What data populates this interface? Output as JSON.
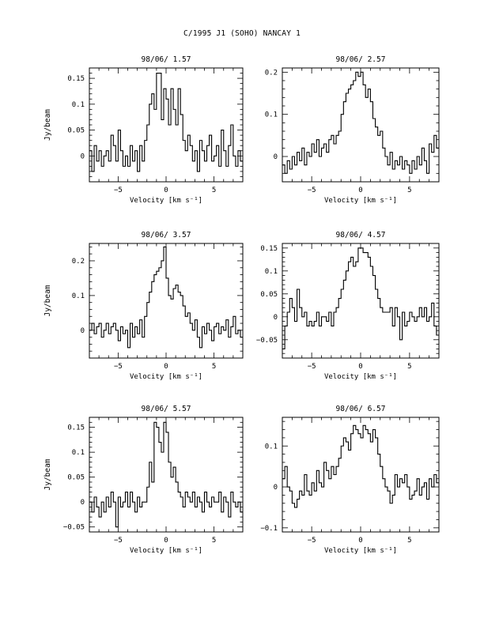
{
  "page_title": "C/1995 J1 (SOHO)   NANCAY      1",
  "chart_data": [
    {
      "type": "line",
      "title": "98/06/ 1.57",
      "xlabel": "Velocity [km s⁻¹]",
      "ylabel": "Jy/beam",
      "xlim": [
        -8,
        8
      ],
      "ylim": [
        -0.05,
        0.17
      ],
      "xticks": [
        -5,
        0,
        5
      ],
      "yticks": [
        0,
        0.05,
        0.1,
        0.15
      ],
      "ytick_labels": [
        "0",
        "0.05",
        "0.1",
        "0.15"
      ],
      "grid": false,
      "legend": "none",
      "x": [
        -8.0,
        -7.75,
        -7.5,
        -7.25,
        -7.0,
        -6.75,
        -6.5,
        -6.25,
        -6.0,
        -5.75,
        -5.5,
        -5.25,
        -5.0,
        -4.75,
        -4.5,
        -4.25,
        -4.0,
        -3.75,
        -3.5,
        -3.25,
        -3.0,
        -2.75,
        -2.5,
        -2.25,
        -2.0,
        -1.75,
        -1.5,
        -1.25,
        -1.0,
        -0.75,
        -0.5,
        -0.25,
        0.0,
        0.25,
        0.5,
        0.75,
        1.0,
        1.25,
        1.5,
        1.75,
        2.0,
        2.25,
        2.5,
        2.75,
        3.0,
        3.25,
        3.5,
        3.75,
        4.0,
        4.25,
        4.5,
        4.75,
        5.0,
        5.25,
        5.5,
        5.75,
        6.0,
        6.25,
        6.5,
        6.75,
        7.0,
        7.25,
        7.5,
        7.75
      ],
      "values": [
        0.01,
        -0.03,
        0.02,
        -0.01,
        0.01,
        -0.02,
        0.0,
        0.01,
        -0.01,
        0.04,
        0.02,
        -0.01,
        0.05,
        0.01,
        -0.02,
        0.0,
        -0.02,
        0.02,
        -0.01,
        0.01,
        -0.03,
        0.02,
        -0.01,
        0.03,
        0.06,
        0.1,
        0.12,
        0.09,
        0.16,
        0.16,
        0.07,
        0.13,
        0.11,
        0.06,
        0.13,
        0.09,
        0.06,
        0.13,
        0.08,
        0.03,
        0.01,
        0.04,
        0.02,
        -0.01,
        0.01,
        -0.03,
        0.03,
        0.01,
        -0.01,
        0.02,
        0.04,
        -0.01,
        0.0,
        0.02,
        -0.02,
        0.05,
        0.01,
        -0.02,
        0.02,
        0.06,
        0.0,
        -0.02,
        0.01,
        -0.01
      ]
    },
    {
      "type": "line",
      "title": "98/06/ 2.57",
      "xlabel": "Velocity [km s⁻¹]",
      "ylabel": "",
      "xlim": [
        -8,
        8
      ],
      "ylim": [
        -0.06,
        0.21
      ],
      "xticks": [
        -5,
        0,
        5
      ],
      "yticks": [
        0,
        0.1,
        0.2
      ],
      "ytick_labels": [
        "0",
        "0.1",
        "0.2"
      ],
      "grid": false,
      "legend": "none",
      "x": [
        -8.0,
        -7.75,
        -7.5,
        -7.25,
        -7.0,
        -6.75,
        -6.5,
        -6.25,
        -6.0,
        -5.75,
        -5.5,
        -5.25,
        -5.0,
        -4.75,
        -4.5,
        -4.25,
        -4.0,
        -3.75,
        -3.5,
        -3.25,
        -3.0,
        -2.75,
        -2.5,
        -2.25,
        -2.0,
        -1.75,
        -1.5,
        -1.25,
        -1.0,
        -0.75,
        -0.5,
        -0.25,
        0.0,
        0.25,
        0.5,
        0.75,
        1.0,
        1.25,
        1.5,
        1.75,
        2.0,
        2.25,
        2.5,
        2.75,
        3.0,
        3.25,
        3.5,
        3.75,
        4.0,
        4.25,
        4.5,
        4.75,
        5.0,
        5.25,
        5.5,
        5.75,
        6.0,
        6.25,
        6.5,
        6.75,
        7.0,
        7.25,
        7.5,
        7.75
      ],
      "values": [
        -0.02,
        -0.04,
        -0.01,
        -0.03,
        0.0,
        -0.02,
        0.01,
        -0.01,
        0.02,
        -0.02,
        0.01,
        0.0,
        0.03,
        0.01,
        0.04,
        0.0,
        0.02,
        0.03,
        0.01,
        0.04,
        0.05,
        0.03,
        0.05,
        0.06,
        0.1,
        0.13,
        0.15,
        0.16,
        0.17,
        0.18,
        0.2,
        0.19,
        0.2,
        0.17,
        0.14,
        0.16,
        0.13,
        0.09,
        0.07,
        0.05,
        0.06,
        0.02,
        0.0,
        -0.02,
        0.01,
        -0.03,
        -0.01,
        -0.02,
        0.0,
        -0.03,
        -0.01,
        -0.02,
        -0.04,
        -0.01,
        -0.03,
        0.0,
        -0.02,
        0.02,
        -0.01,
        -0.04,
        0.03,
        0.01,
        0.05,
        0.02
      ]
    },
    {
      "type": "line",
      "title": "98/06/ 3.57",
      "xlabel": "Velocity [km s⁻¹]",
      "ylabel": "Jy/beam",
      "xlim": [
        -8,
        8
      ],
      "ylim": [
        -0.08,
        0.25
      ],
      "xticks": [
        -5,
        0,
        5
      ],
      "yticks": [
        0,
        0.1,
        0.2
      ],
      "ytick_labels": [
        "0",
        "0.1",
        "0.2"
      ],
      "grid": false,
      "legend": "none",
      "x": [
        -8.0,
        -7.75,
        -7.5,
        -7.25,
        -7.0,
        -6.75,
        -6.5,
        -6.25,
        -6.0,
        -5.75,
        -5.5,
        -5.25,
        -5.0,
        -4.75,
        -4.5,
        -4.25,
        -4.0,
        -3.75,
        -3.5,
        -3.25,
        -3.0,
        -2.75,
        -2.5,
        -2.25,
        -2.0,
        -1.75,
        -1.5,
        -1.25,
        -1.0,
        -0.75,
        -0.5,
        -0.25,
        0.0,
        0.25,
        0.5,
        0.75,
        1.0,
        1.25,
        1.5,
        1.75,
        2.0,
        2.25,
        2.5,
        2.75,
        3.0,
        3.25,
        3.5,
        3.75,
        4.0,
        4.25,
        4.5,
        4.75,
        5.0,
        5.25,
        5.5,
        5.75,
        6.0,
        6.25,
        6.5,
        6.75,
        7.0,
        7.25,
        7.5,
        7.75
      ],
      "values": [
        0.0,
        0.02,
        -0.01,
        0.01,
        0.02,
        -0.02,
        0.0,
        0.02,
        -0.01,
        0.01,
        0.02,
        0.0,
        -0.03,
        0.01,
        -0.01,
        0.0,
        -0.05,
        0.02,
        -0.02,
        0.01,
        -0.01,
        0.03,
        -0.02,
        0.04,
        0.08,
        0.11,
        0.14,
        0.16,
        0.17,
        0.18,
        0.2,
        0.24,
        0.15,
        0.1,
        0.09,
        0.12,
        0.13,
        0.11,
        0.1,
        0.07,
        0.04,
        0.05,
        0.02,
        0.0,
        0.03,
        -0.02,
        -0.05,
        0.01,
        -0.01,
        0.02,
        0.0,
        -0.03,
        0.01,
        0.02,
        -0.01,
        0.01,
        0.0,
        0.03,
        -0.02,
        0.01,
        0.04,
        -0.01,
        0.0,
        -0.02
      ]
    },
    {
      "type": "line",
      "title": "98/06/ 4.57",
      "xlabel": "Velocity [km s⁻¹]",
      "ylabel": "",
      "xlim": [
        -8,
        8
      ],
      "ylim": [
        -0.09,
        0.16
      ],
      "xticks": [
        -5,
        0,
        5
      ],
      "yticks": [
        -0.05,
        0,
        0.05,
        0.1,
        0.15
      ],
      "ytick_labels": [
        "-0.05",
        "0",
        "0.05",
        "0.1",
        "0.15"
      ],
      "grid": false,
      "legend": "none",
      "x": [
        -8.0,
        -7.75,
        -7.5,
        -7.25,
        -7.0,
        -6.75,
        -6.5,
        -6.25,
        -6.0,
        -5.75,
        -5.5,
        -5.25,
        -5.0,
        -4.75,
        -4.5,
        -4.25,
        -4.0,
        -3.75,
        -3.5,
        -3.25,
        -3.0,
        -2.75,
        -2.5,
        -2.25,
        -2.0,
        -1.75,
        -1.5,
        -1.25,
        -1.0,
        -0.75,
        -0.5,
        -0.25,
        0.0,
        0.25,
        0.5,
        0.75,
        1.0,
        1.25,
        1.5,
        1.75,
        2.0,
        2.25,
        2.5,
        2.75,
        3.0,
        3.25,
        3.5,
        3.75,
        4.0,
        4.25,
        4.5,
        4.75,
        5.0,
        5.25,
        5.5,
        5.75,
        6.0,
        6.25,
        6.5,
        6.75,
        7.0,
        7.25,
        7.5,
        7.75
      ],
      "values": [
        -0.07,
        -0.02,
        0.01,
        0.04,
        0.02,
        -0.01,
        0.06,
        0.02,
        0.0,
        0.01,
        -0.02,
        -0.01,
        -0.02,
        -0.01,
        0.01,
        -0.02,
        0.0,
        0.0,
        -0.01,
        0.01,
        -0.02,
        0.01,
        0.02,
        0.04,
        0.06,
        0.08,
        0.1,
        0.12,
        0.13,
        0.11,
        0.12,
        0.15,
        0.15,
        0.14,
        0.14,
        0.13,
        0.11,
        0.09,
        0.06,
        0.04,
        0.02,
        0.01,
        0.01,
        0.01,
        0.02,
        -0.02,
        0.02,
        0.0,
        -0.05,
        0.01,
        -0.02,
        -0.01,
        0.01,
        0.0,
        -0.01,
        0.0,
        0.02,
        0.0,
        0.02,
        -0.01,
        0.0,
        0.03,
        -0.02,
        -0.04
      ]
    },
    {
      "type": "line",
      "title": "98/06/ 5.57",
      "xlabel": "Velocity [km s⁻¹]",
      "ylabel": "Jy/beam",
      "xlim": [
        -8,
        8
      ],
      "ylim": [
        -0.06,
        0.17
      ],
      "xticks": [
        -5,
        0,
        5
      ],
      "yticks": [
        -0.05,
        0,
        0.05,
        0.1,
        0.15
      ],
      "ytick_labels": [
        "-0.05",
        "0",
        "0.05",
        "0.1",
        "0.15"
      ],
      "grid": false,
      "legend": "none",
      "x": [
        -8.0,
        -7.75,
        -7.5,
        -7.25,
        -7.0,
        -6.75,
        -6.5,
        -6.25,
        -6.0,
        -5.75,
        -5.5,
        -5.25,
        -5.0,
        -4.75,
        -4.5,
        -4.25,
        -4.0,
        -3.75,
        -3.5,
        -3.25,
        -3.0,
        -2.75,
        -2.5,
        -2.25,
        -2.0,
        -1.75,
        -1.5,
        -1.25,
        -1.0,
        -0.75,
        -0.5,
        -0.25,
        0.0,
        0.25,
        0.5,
        0.75,
        1.0,
        1.25,
        1.5,
        1.75,
        2.0,
        2.25,
        2.5,
        2.75,
        3.0,
        3.25,
        3.5,
        3.75,
        4.0,
        4.25,
        4.5,
        4.75,
        5.0,
        5.25,
        5.5,
        5.75,
        6.0,
        6.25,
        6.5,
        6.75,
        7.0,
        7.25,
        7.5,
        7.75
      ],
      "values": [
        0.0,
        -0.02,
        0.01,
        -0.01,
        -0.03,
        0.0,
        -0.02,
        0.01,
        -0.01,
        0.02,
        0.0,
        -0.05,
        0.01,
        -0.01,
        0.0,
        0.02,
        -0.01,
        0.02,
        0.0,
        -0.02,
        0.01,
        -0.01,
        0.0,
        0.0,
        0.03,
        0.08,
        0.04,
        0.16,
        0.15,
        0.12,
        0.1,
        0.16,
        0.14,
        0.08,
        0.05,
        0.07,
        0.04,
        0.02,
        0.01,
        -0.01,
        0.02,
        0.01,
        0.0,
        0.02,
        -0.01,
        0.01,
        0.0,
        -0.02,
        0.02,
        0.0,
        -0.01,
        0.01,
        0.0,
        0.0,
        0.02,
        -0.02,
        0.01,
        0.0,
        -0.03,
        0.02,
        0.0,
        -0.01,
        0.0,
        -0.02
      ]
    },
    {
      "type": "line",
      "title": "98/06/ 6.57",
      "xlabel": "Velocity [km s⁻¹]",
      "ylabel": "",
      "xlim": [
        -8,
        8
      ],
      "ylim": [
        -0.11,
        0.17
      ],
      "xticks": [
        -5,
        0,
        5
      ],
      "yticks": [
        -0.1,
        0,
        0.1
      ],
      "ytick_labels": [
        "-0.1",
        "0",
        "0.1"
      ],
      "grid": false,
      "legend": "none",
      "x": [
        -8.0,
        -7.75,
        -7.5,
        -7.25,
        -7.0,
        -6.75,
        -6.5,
        -6.25,
        -6.0,
        -5.75,
        -5.5,
        -5.25,
        -5.0,
        -4.75,
        -4.5,
        -4.25,
        -4.0,
        -3.75,
        -3.5,
        -3.25,
        -3.0,
        -2.75,
        -2.5,
        -2.25,
        -2.0,
        -1.75,
        -1.5,
        -1.25,
        -1.0,
        -0.75,
        -0.5,
        -0.25,
        0.0,
        0.25,
        0.5,
        0.75,
        1.0,
        1.25,
        1.5,
        1.75,
        2.0,
        2.25,
        2.5,
        2.75,
        3.0,
        3.25,
        3.5,
        3.75,
        4.0,
        4.25,
        4.5,
        4.75,
        5.0,
        5.25,
        5.5,
        5.75,
        6.0,
        6.25,
        6.5,
        6.75,
        7.0,
        7.25,
        7.5,
        7.75
      ],
      "values": [
        0.02,
        0.05,
        0.0,
        -0.01,
        -0.04,
        -0.05,
        -0.03,
        -0.01,
        -0.02,
        0.03,
        -0.01,
        -0.02,
        0.01,
        -0.01,
        0.04,
        0.01,
        0.0,
        0.06,
        0.04,
        0.02,
        0.05,
        0.03,
        0.05,
        0.07,
        0.1,
        0.12,
        0.11,
        0.09,
        0.13,
        0.15,
        0.14,
        0.13,
        0.12,
        0.15,
        0.14,
        0.13,
        0.11,
        0.14,
        0.12,
        0.08,
        0.05,
        0.02,
        0.0,
        -0.01,
        -0.04,
        -0.02,
        0.03,
        0.0,
        0.02,
        0.01,
        0.03,
        0.0,
        -0.03,
        -0.02,
        -0.01,
        0.02,
        -0.02,
        0.0,
        0.01,
        -0.03,
        0.02,
        0.0,
        0.03,
        0.01
      ]
    }
  ]
}
